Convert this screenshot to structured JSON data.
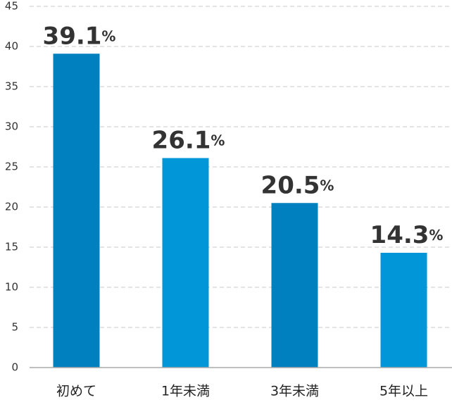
{
  "chart_data": {
    "type": "bar",
    "categories": [
      "初めて",
      "1年未満",
      "3年未満",
      "5年以上"
    ],
    "values": [
      39.1,
      26.1,
      20.5,
      14.3
    ],
    "value_labels": [
      "39.1%",
      "26.1%",
      "20.5%",
      "14.3%"
    ],
    "colors": [
      "#0080bf",
      "#0096d8",
      "#0080bf",
      "#0096d8"
    ],
    "ylim": [
      0,
      45
    ],
    "yticks": [
      0,
      5,
      10,
      15,
      20,
      25,
      30,
      35,
      40,
      45
    ],
    "grid": true
  }
}
